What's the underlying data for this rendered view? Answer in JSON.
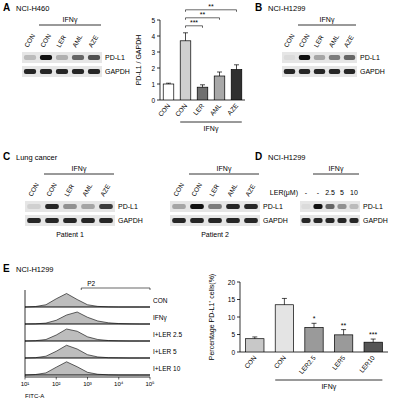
{
  "chart_data": [
    {
      "type": "bar",
      "ylabel": "PD-L1 / GAPDH",
      "categories": [
        "CON",
        "CON",
        "LER",
        "AML",
        "AZE"
      ],
      "group_label": "IFNγ",
      "values": [
        1,
        3.7,
        0.8,
        1.5,
        1.9
      ],
      "error": [
        0.05,
        0.5,
        0.15,
        0.25,
        0.3
      ],
      "significance": [
        null,
        null,
        "***",
        "**",
        "**"
      ],
      "colors": [
        "#ffffff",
        "#d0d0d0",
        "#707070",
        "#a8a8a8",
        "#303030"
      ],
      "ylim": [
        0,
        5
      ],
      "yticks": [
        0,
        1,
        2,
        3,
        4,
        5
      ],
      "grid": false
    },
    {
      "type": "bar",
      "ylabel": "Percentage PD-L1⁺ cells(%)",
      "categories": [
        "CON",
        "CON",
        "LER2.5",
        "LER5",
        "LER10"
      ],
      "group_label": "IFNγ",
      "values": [
        3.8,
        13.5,
        7,
        4.9,
        2.8
      ],
      "error": [
        0.5,
        1.8,
        1.2,
        1.5,
        0.9
      ],
      "significance": [
        null,
        null,
        "*",
        "**",
        "***"
      ],
      "colors": [
        "#c8c8c8",
        "#e4e4e4",
        "#9a9a9a",
        "#9a9a9a",
        "#555555"
      ],
      "ylim": [
        0,
        20
      ],
      "yticks": [
        0,
        5,
        10,
        15,
        20
      ],
      "grid": false
    }
  ],
  "blots": [
    {
      "panel": "A",
      "title": "NCI-H460",
      "group_label": "IFNγ",
      "lanes": [
        "CON",
        "CON",
        "LER",
        "AML",
        "AZE"
      ],
      "rows": [
        {
          "label": "PD-L1",
          "intensity": [
            0.2,
            1,
            0.25,
            0.6,
            0.7
          ]
        },
        {
          "label": "GAPDH",
          "intensity": [
            0.9,
            0.9,
            0.9,
            0.9,
            0.9
          ]
        }
      ]
    },
    {
      "panel": "B",
      "title": "NCI-H1299",
      "group_label": "IFNγ",
      "lanes": [
        "CON",
        "CON",
        "LER",
        "AML",
        "AZE"
      ],
      "rows": [
        {
          "label": "PD-L1",
          "intensity": [
            0.05,
            1,
            0.3,
            0.5,
            0.6
          ]
        },
        {
          "label": "GAPDH",
          "intensity": [
            0.9,
            0.9,
            0.9,
            0.9,
            0.9
          ]
        }
      ]
    },
    {
      "panel": "C",
      "title": "Lung cancer",
      "gels": [
        {
          "caption": "Patient 1",
          "group_label": "IFNγ",
          "lanes": [
            "CON",
            "CON",
            "LER",
            "AML",
            "AZE"
          ],
          "rows": [
            {
              "label": "PD-L1",
              "intensity": [
                0.1,
                0.9,
                0.4,
                0.3,
                0.8
              ]
            },
            {
              "label": "GAPDH",
              "intensity": [
                0.9,
                0.9,
                0.9,
                0.9,
                0.9
              ]
            }
          ]
        },
        {
          "caption": "Patient 2",
          "group_label": "IFNγ",
          "lanes": [
            "CON",
            "CON",
            "LER",
            "AML",
            "AZE"
          ],
          "rows": [
            {
              "label": "PD-L1",
              "intensity": [
                0.3,
                1,
                0.5,
                0.9,
                0.9
              ]
            },
            {
              "label": "GAPDH",
              "intensity": [
                0.9,
                0.9,
                0.9,
                0.9,
                0.9
              ]
            }
          ]
        }
      ]
    },
    {
      "panel": "D",
      "title": "NCI-H1299",
      "group_label": "IFNγ",
      "lane_title": "LER(μM)",
      "lanes": [
        "-",
        "-",
        "2.5",
        "5",
        "10"
      ],
      "rows": [
        {
          "label": "PD-L1",
          "intensity": [
            0.05,
            1,
            0.6,
            0.4,
            0.2
          ]
        },
        {
          "label": "GAPDH",
          "intensity": [
            0.9,
            0.9,
            0.9,
            0.9,
            0.9
          ]
        }
      ]
    }
  ],
  "flow": {
    "panel": "E",
    "title": "NCI-H1299",
    "xlabel": "FITC-A",
    "xlim": [
      1,
      5
    ],
    "xticks": [
      {
        "value": 1,
        "label": "10¹"
      },
      {
        "value": 2,
        "label": "10²"
      },
      {
        "value": 3,
        "label": "10³"
      },
      {
        "value": 4,
        "label": "10⁴"
      },
      {
        "value": 5,
        "label": "10⁵"
      }
    ],
    "ylim": [
      0,
      100
    ],
    "gate": {
      "label": "P2",
      "range": [
        2.8,
        5
      ]
    },
    "x": [
      1,
      1.33,
      1.67,
      2,
      2.33,
      2.67,
      3,
      3.33,
      3.67,
      4,
      4.33,
      4.67,
      5
    ],
    "histograms": [
      {
        "label": "CON",
        "counts": [
          0,
          3,
          15,
          55,
          90,
          50,
          15,
          4,
          1,
          0,
          0,
          0,
          0
        ]
      },
      {
        "label": "IFNγ",
        "counts": [
          0,
          1,
          6,
          25,
          60,
          80,
          45,
          20,
          8,
          3,
          1,
          0,
          0
        ]
      },
      {
        "label": "I+LER 2.5",
        "counts": [
          0,
          2,
          10,
          40,
          80,
          65,
          28,
          10,
          3,
          1,
          0,
          0,
          0
        ]
      },
      {
        "label": "I+LER 5",
        "counts": [
          0,
          2,
          12,
          45,
          85,
          60,
          22,
          7,
          2,
          1,
          0,
          0,
          0
        ]
      },
      {
        "label": "I+LER 10",
        "counts": [
          0,
          3,
          14,
          52,
          88,
          55,
          18,
          5,
          1,
          0,
          0,
          0,
          0
        ]
      }
    ]
  }
}
